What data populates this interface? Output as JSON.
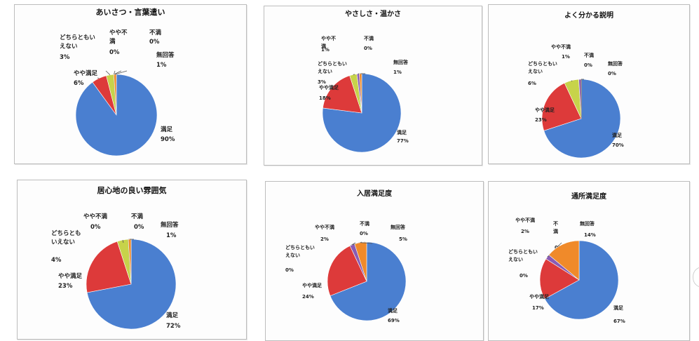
{
  "colors": {
    "satisfied": "#4a7fd0",
    "somewhat_satisfied": "#dd3a3a",
    "neutral": "#c7d34a",
    "somewhat_dissatisfied": "#8a5bb5",
    "dissatisfied": "#3ca6c8",
    "no_answer": "#f08a2a"
  },
  "chart_data": [
    {
      "type": "pie",
      "title": "あいさつ・言葉遣い",
      "slices": [
        {
          "label": "満足",
          "display_value": "90%",
          "value": 90,
          "color_key": "satisfied"
        },
        {
          "label": "やや満足",
          "display_value": "6%",
          "value": 6,
          "color_key": "somewhat_satisfied"
        },
        {
          "label": "どちらともいえない",
          "display_value": "3%",
          "value": 3,
          "color_key": "neutral"
        },
        {
          "label": "やや不満",
          "display_value": "0%",
          "value": 0,
          "color_key": "somewhat_dissatisfied"
        },
        {
          "label": "不満",
          "display_value": "0%",
          "value": 0,
          "color_key": "dissatisfied"
        },
        {
          "label": "無回答",
          "display_value": "1%",
          "value": 1,
          "color_key": "no_answer"
        }
      ]
    },
    {
      "type": "pie",
      "title": "やさしさ・温かさ",
      "slices": [
        {
          "label": "満足",
          "display_value": "77%",
          "value": 77,
          "color_key": "satisfied"
        },
        {
          "label": "やや満足",
          "display_value": "18%",
          "value": 18,
          "color_key": "somewhat_satisfied"
        },
        {
          "label": "どちらともいえない",
          "display_value": "3%",
          "value": 3,
          "color_key": "neutral"
        },
        {
          "label": "やや不満",
          "display_value": "1%",
          "value": 1,
          "color_key": "somewhat_dissatisfied"
        },
        {
          "label": "不満",
          "display_value": "0%",
          "value": 0,
          "color_key": "dissatisfied"
        },
        {
          "label": "無回答",
          "display_value": "1%",
          "value": 1,
          "color_key": "no_answer"
        }
      ]
    },
    {
      "type": "pie",
      "title": "よく分かる説明",
      "slices": [
        {
          "label": "満足",
          "display_value": "70%",
          "value": 70,
          "color_key": "satisfied"
        },
        {
          "label": "やや満足",
          "display_value": "23%",
          "value": 23,
          "color_key": "somewhat_satisfied"
        },
        {
          "label": "どちらともいえない",
          "display_value": "6%",
          "value": 6,
          "color_key": "neutral"
        },
        {
          "label": "やや不満",
          "display_value": "1%",
          "value": 1,
          "color_key": "somewhat_dissatisfied"
        },
        {
          "label": "不満",
          "display_value": "0%",
          "value": 0,
          "color_key": "dissatisfied"
        },
        {
          "label": "無回答",
          "display_value": "0%",
          "value": 0,
          "color_key": "no_answer"
        }
      ]
    },
    {
      "type": "pie",
      "title": "居心地の良い雰囲気",
      "slices": [
        {
          "label": "満足",
          "display_value": "72%",
          "value": 72,
          "color_key": "satisfied"
        },
        {
          "label": "やや満足",
          "display_value": "23%",
          "value": 23,
          "color_key": "somewhat_satisfied"
        },
        {
          "label": "どちらともいえない",
          "display_value": "4%",
          "value": 4,
          "color_key": "neutral"
        },
        {
          "label": "やや不満",
          "display_value": "0%",
          "value": 0,
          "color_key": "somewhat_dissatisfied"
        },
        {
          "label": "不満",
          "display_value": "0%",
          "value": 0,
          "color_key": "dissatisfied"
        },
        {
          "label": "無回答",
          "display_value": "1%",
          "value": 1,
          "color_key": "no_answer"
        }
      ]
    },
    {
      "type": "pie",
      "title": "入居満足度",
      "slices": [
        {
          "label": "満足",
          "display_value": "69%",
          "value": 69,
          "color_key": "satisfied"
        },
        {
          "label": "やや満足",
          "display_value": "24%",
          "value": 24,
          "color_key": "somewhat_satisfied"
        },
        {
          "label": "どちらともいえない",
          "display_value": "0%",
          "value": 0,
          "color_key": "neutral"
        },
        {
          "label": "やや不満",
          "display_value": "2%",
          "value": 2,
          "color_key": "somewhat_dissatisfied"
        },
        {
          "label": "不満",
          "display_value": "0%",
          "value": 0,
          "color_key": "dissatisfied"
        },
        {
          "label": "無回答",
          "display_value": "5%",
          "value": 5,
          "color_key": "no_answer"
        }
      ]
    },
    {
      "type": "pie",
      "title": "通所満足度",
      "slices": [
        {
          "label": "満足",
          "display_value": "67%",
          "value": 67,
          "color_key": "satisfied"
        },
        {
          "label": "やや満足",
          "display_value": "17%",
          "value": 17,
          "color_key": "somewhat_satisfied"
        },
        {
          "label": "どちらともいえない",
          "display_value": "0%",
          "value": 0,
          "color_key": "neutral"
        },
        {
          "label": "やや不満",
          "display_value": "2%",
          "value": 2,
          "color_key": "somewhat_dissatisfied"
        },
        {
          "label": "不満",
          "display_value": "0%",
          "value": 0,
          "color_key": "dissatisfied"
        },
        {
          "label": "無回答",
          "display_value": "14%",
          "value": 14,
          "color_key": "no_answer"
        }
      ]
    }
  ]
}
